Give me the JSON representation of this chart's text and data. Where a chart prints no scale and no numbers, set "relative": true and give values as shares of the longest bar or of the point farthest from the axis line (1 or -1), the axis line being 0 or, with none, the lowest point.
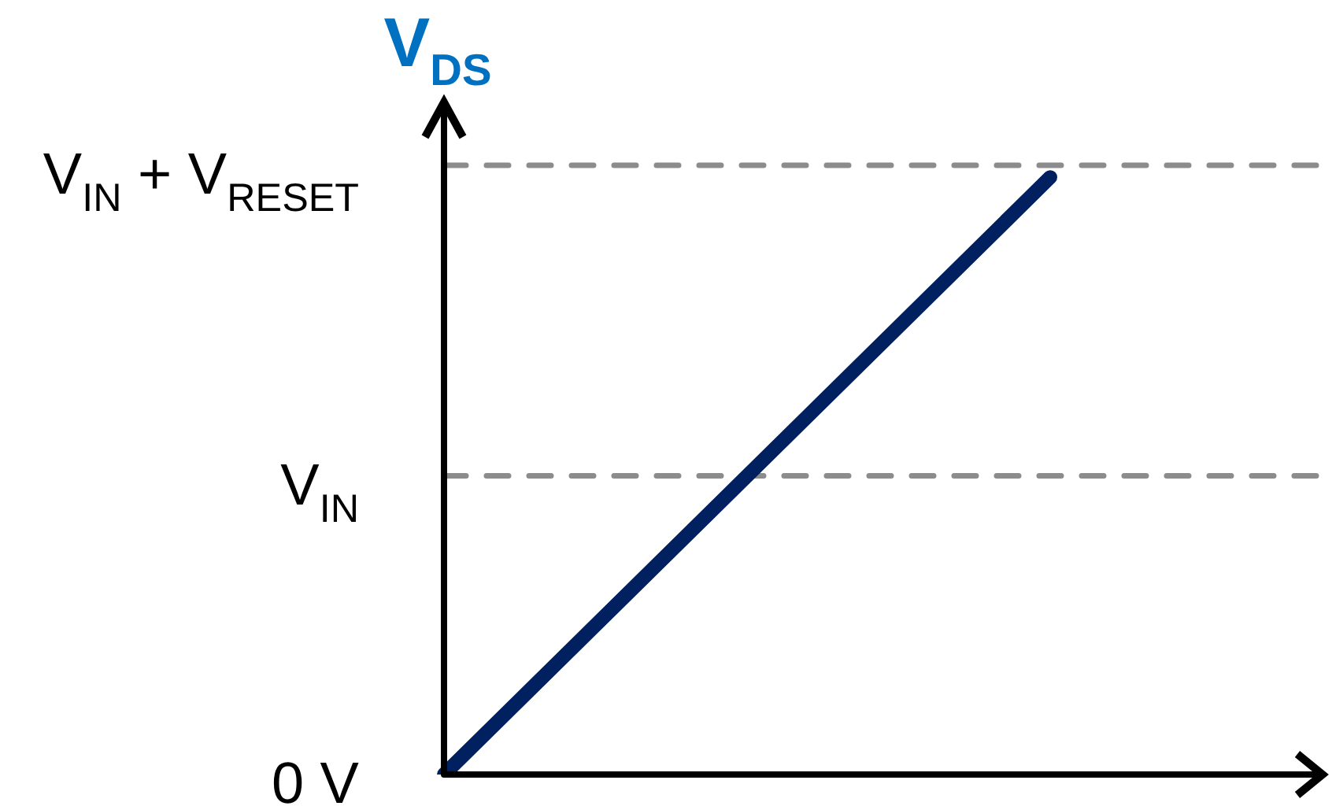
{
  "chart_data": {
    "type": "line",
    "ylabel": "V$_{DS}$",
    "categories": [
      null,
      null
    ],
    "relative": true,
    "series": [
      {
        "color": "#002060",
        "values": [
          0,
          1
        ]
      }
    ],
    "ref_lines": [
      {
        "axis": "y",
        "value": 0,
        "label": "0 V",
        "color": "#000000",
        "line_style": "solid"
      },
      {
        "axis": "y",
        "value": 0.5,
        "label": "V$_{IN}$",
        "color": "#8c8c8c",
        "line_style": "dashed"
      },
      {
        "axis": "y",
        "value": 1.02,
        "label": "V$_{IN}$ + V$_{RESET}$",
        "color": "#8c8c8c",
        "line_style": "dashed"
      }
    ],
    "line_style": "solid"
  }
}
